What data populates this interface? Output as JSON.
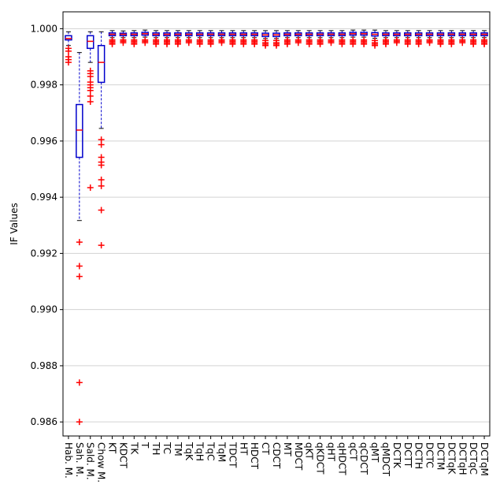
{
  "chart_data": {
    "type": "boxplot",
    "y_label": "IF Values",
    "ylim": [
      0.9855,
      1.0006
    ],
    "yticks": [
      0.986,
      0.988,
      {
        "value": 0.99,
        "label": "0.990"
      },
      0.992,
      0.994,
      0.996,
      0.998,
      {
        "value": 1.0,
        "label": "1.000"
      }
    ],
    "grid": true,
    "box_color": "#0000cc",
    "median_color": "#ff0000",
    "flier_color": "#ff0000",
    "categories": [
      "Hab. M.",
      "Sah. M.",
      "Sald. M.",
      "Chow M.",
      "KT",
      "KDCT",
      "TK",
      "T",
      "TH",
      "TC",
      "TM",
      "TqK",
      "TqH",
      "TqC",
      "TqM",
      "TDCT",
      "HT",
      "HDCT",
      "CT",
      "CDCT",
      "MT",
      "MDCT",
      "qKT",
      "qKDCT",
      "qHT",
      "qHDCT",
      "qCT",
      "qCDCT",
      "qMT",
      "qMDCT",
      "DCTK",
      "DCTT",
      "DCTH",
      "DCTC",
      "DCTM",
      "DCTqK",
      "DCTqH",
      "DCTqC",
      "DCTqM"
    ],
    "boxes": [
      {
        "low": 0.9994,
        "q1": 0.9996,
        "median": 0.99965,
        "q3": 0.99975,
        "high": 0.99989,
        "outliers": [
          0.9993,
          0.9992,
          0.999,
          0.9989,
          0.9988
        ]
      },
      {
        "low": 0.99317,
        "q1": 0.99542,
        "median": 0.99639,
        "q3": 0.9973,
        "high": 0.99915,
        "outliers": [
          0.9924,
          0.99155,
          0.99118,
          0.9874,
          0.986
        ]
      },
      {
        "low": 0.9988,
        "q1": 0.9993,
        "median": 0.99955,
        "q3": 0.99975,
        "high": 0.99989,
        "outliers": [
          0.9985,
          0.9984,
          0.9983,
          0.9981,
          0.998,
          0.9979,
          0.9978,
          0.9976,
          0.9974,
          0.99434
        ]
      },
      {
        "low": 0.99645,
        "q1": 0.99809,
        "median": 0.9988,
        "q3": 0.9994,
        "high": 0.99989,
        "outliers": [
          0.99605,
          0.99587,
          0.99542,
          0.99525,
          0.99514,
          0.99462,
          0.9944,
          0.99354,
          0.99229
        ]
      },
      {
        "low": 0.99968,
        "q1": 0.99975,
        "median": 0.9998,
        "q3": 0.99985,
        "high": 0.99993,
        "outliers": [
          0.9996,
          0.99955,
          0.9995,
          0.99945
        ]
      },
      {
        "low": 0.99968,
        "q1": 0.99975,
        "median": 0.9998,
        "q3": 0.99984,
        "high": 0.99992,
        "outliers": [
          0.9996,
          0.99955,
          0.9995
        ]
      },
      {
        "low": 0.99968,
        "q1": 0.99975,
        "median": 0.9998,
        "q3": 0.99985,
        "high": 0.99993,
        "outliers": [
          0.9996,
          0.99955,
          0.9995,
          0.99945
        ]
      },
      {
        "low": 0.9997,
        "q1": 0.99977,
        "median": 0.99982,
        "q3": 0.99987,
        "high": 0.99995,
        "outliers": [
          0.9996,
          0.99955,
          0.9995
        ]
      },
      {
        "low": 0.99968,
        "q1": 0.99975,
        "median": 0.9998,
        "q3": 0.99985,
        "high": 0.99993,
        "outliers": [
          0.9996,
          0.99955,
          0.9995,
          0.99945
        ]
      },
      {
        "low": 0.99968,
        "q1": 0.99975,
        "median": 0.9998,
        "q3": 0.99985,
        "high": 0.99993,
        "outliers": [
          0.9996,
          0.99955,
          0.9995,
          0.99945
        ]
      },
      {
        "low": 0.99968,
        "q1": 0.99975,
        "median": 0.9998,
        "q3": 0.99985,
        "high": 0.99993,
        "outliers": [
          0.9996,
          0.99955,
          0.9995,
          0.99945
        ]
      },
      {
        "low": 0.99968,
        "q1": 0.99975,
        "median": 0.9998,
        "q3": 0.99985,
        "high": 0.99993,
        "outliers": [
          0.9996,
          0.99955,
          0.9995
        ]
      },
      {
        "low": 0.99968,
        "q1": 0.99975,
        "median": 0.9998,
        "q3": 0.99985,
        "high": 0.99993,
        "outliers": [
          0.9996,
          0.99955,
          0.9995,
          0.99945
        ]
      },
      {
        "low": 0.99968,
        "q1": 0.99975,
        "median": 0.9998,
        "q3": 0.99985,
        "high": 0.99993,
        "outliers": [
          0.9996,
          0.99955,
          0.9995,
          0.99945
        ]
      },
      {
        "low": 0.99968,
        "q1": 0.99975,
        "median": 0.9998,
        "q3": 0.99985,
        "high": 0.99993,
        "outliers": [
          0.9996,
          0.99955,
          0.9995
        ]
      },
      {
        "low": 0.99968,
        "q1": 0.99975,
        "median": 0.9998,
        "q3": 0.99985,
        "high": 0.99993,
        "outliers": [
          0.9996,
          0.99955,
          0.9995,
          0.99945
        ]
      },
      {
        "low": 0.99968,
        "q1": 0.99975,
        "median": 0.9998,
        "q3": 0.99985,
        "high": 0.99993,
        "outliers": [
          0.9996,
          0.99955,
          0.9995,
          0.99945
        ]
      },
      {
        "low": 0.99968,
        "q1": 0.99975,
        "median": 0.9998,
        "q3": 0.99985,
        "high": 0.99993,
        "outliers": [
          0.9996,
          0.99955,
          0.9995,
          0.99945
        ]
      },
      {
        "low": 0.99965,
        "q1": 0.99972,
        "median": 0.99978,
        "q3": 0.99984,
        "high": 0.99993,
        "outliers": [
          0.99958,
          0.9995,
          0.99945,
          0.9994
        ]
      },
      {
        "low": 0.99965,
        "q1": 0.99972,
        "median": 0.99978,
        "q3": 0.99984,
        "high": 0.99993,
        "outliers": [
          0.99958,
          0.9995,
          0.99945,
          0.9994
        ]
      },
      {
        "low": 0.99968,
        "q1": 0.99975,
        "median": 0.9998,
        "q3": 0.99985,
        "high": 0.99993,
        "outliers": [
          0.9996,
          0.99955,
          0.9995,
          0.99945
        ]
      },
      {
        "low": 0.99968,
        "q1": 0.99975,
        "median": 0.9998,
        "q3": 0.99985,
        "high": 0.99993,
        "outliers": [
          0.9996,
          0.99955,
          0.9995
        ]
      },
      {
        "low": 0.99968,
        "q1": 0.99975,
        "median": 0.9998,
        "q3": 0.99985,
        "high": 0.99993,
        "outliers": [
          0.9996,
          0.99955,
          0.9995,
          0.99945
        ]
      },
      {
        "low": 0.99968,
        "q1": 0.99975,
        "median": 0.9998,
        "q3": 0.99985,
        "high": 0.99993,
        "outliers": [
          0.9996,
          0.99955,
          0.9995,
          0.99945
        ]
      },
      {
        "low": 0.99968,
        "q1": 0.99975,
        "median": 0.9998,
        "q3": 0.99985,
        "high": 0.99993,
        "outliers": [
          0.9996,
          0.99955,
          0.9995
        ]
      },
      {
        "low": 0.99968,
        "q1": 0.99975,
        "median": 0.9998,
        "q3": 0.99985,
        "high": 0.99993,
        "outliers": [
          0.9996,
          0.99955,
          0.9995,
          0.99945
        ]
      },
      {
        "low": 0.9997,
        "q1": 0.99977,
        "median": 0.99982,
        "q3": 0.99987,
        "high": 0.99995,
        "outliers": [
          0.9996,
          0.99955,
          0.9995,
          0.99945
        ]
      },
      {
        "low": 0.9997,
        "q1": 0.99977,
        "median": 0.99982,
        "q3": 0.99987,
        "high": 0.99995,
        "outliers": [
          0.9996,
          0.99955,
          0.9995,
          0.99945
        ]
      },
      {
        "low": 0.99966,
        "q1": 0.99974,
        "median": 0.9998,
        "q3": 0.99986,
        "high": 0.99995,
        "outliers": [
          0.99958,
          0.9995,
          0.99945,
          0.9994
        ]
      },
      {
        "low": 0.99968,
        "q1": 0.99975,
        "median": 0.9998,
        "q3": 0.99985,
        "high": 0.99993,
        "outliers": [
          0.9996,
          0.99955,
          0.9995,
          0.99945
        ]
      },
      {
        "low": 0.99968,
        "q1": 0.99975,
        "median": 0.9998,
        "q3": 0.99985,
        "high": 0.99993,
        "outliers": [
          0.9996,
          0.99955,
          0.9995
        ]
      },
      {
        "low": 0.99968,
        "q1": 0.99975,
        "median": 0.9998,
        "q3": 0.99985,
        "high": 0.99993,
        "outliers": [
          0.9996,
          0.99955,
          0.9995,
          0.99945
        ]
      },
      {
        "low": 0.99968,
        "q1": 0.99975,
        "median": 0.9998,
        "q3": 0.99985,
        "high": 0.99993,
        "outliers": [
          0.9996,
          0.99955,
          0.9995,
          0.99945
        ]
      },
      {
        "low": 0.99968,
        "q1": 0.99975,
        "median": 0.9998,
        "q3": 0.99985,
        "high": 0.99993,
        "outliers": [
          0.9996,
          0.99955,
          0.9995
        ]
      },
      {
        "low": 0.99968,
        "q1": 0.99975,
        "median": 0.9998,
        "q3": 0.99985,
        "high": 0.99993,
        "outliers": [
          0.9996,
          0.99955,
          0.9995,
          0.99945
        ]
      },
      {
        "low": 0.99968,
        "q1": 0.99975,
        "median": 0.9998,
        "q3": 0.99985,
        "high": 0.99993,
        "outliers": [
          0.9996,
          0.99955,
          0.9995,
          0.99945
        ]
      },
      {
        "low": 0.99968,
        "q1": 0.99975,
        "median": 0.9998,
        "q3": 0.99985,
        "high": 0.99993,
        "outliers": [
          0.9996,
          0.99955,
          0.9995
        ]
      },
      {
        "low": 0.99968,
        "q1": 0.99975,
        "median": 0.9998,
        "q3": 0.99985,
        "high": 0.99993,
        "outliers": [
          0.9996,
          0.99955,
          0.9995,
          0.99945
        ]
      },
      {
        "low": 0.99968,
        "q1": 0.99975,
        "median": 0.9998,
        "q3": 0.99985,
        "high": 0.99993,
        "outliers": [
          0.9996,
          0.99955,
          0.9995,
          0.99945
        ]
      }
    ]
  }
}
